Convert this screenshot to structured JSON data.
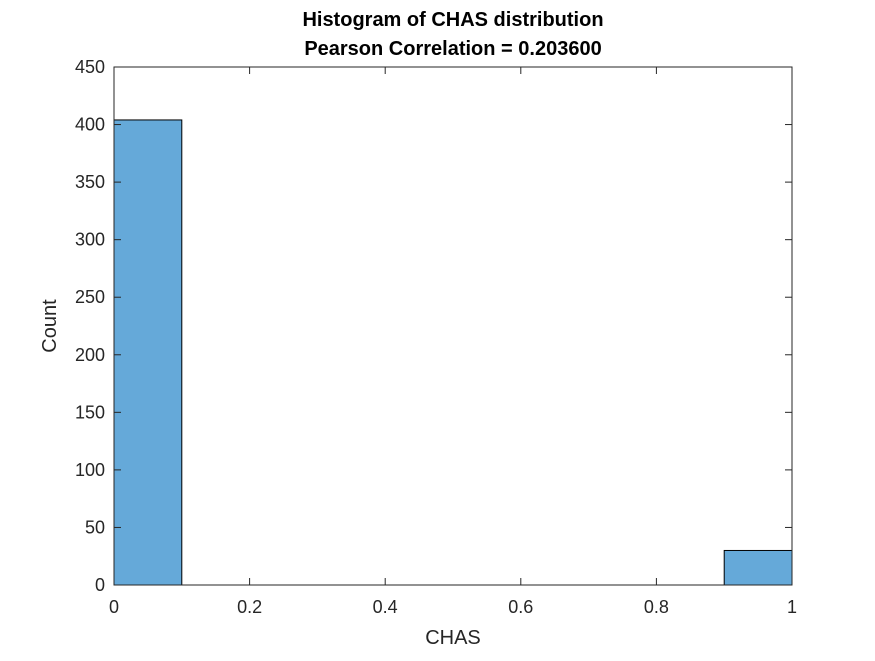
{
  "chart_data": {
    "type": "bar",
    "title": "Histogram of CHAS distribution",
    "subtitle": "Pearson Correlation = 0.203600",
    "xlabel": "CHAS",
    "ylabel": "Count",
    "xlim": [
      0,
      1
    ],
    "ylim": [
      0,
      450
    ],
    "xticks": [
      0,
      0.2,
      0.4,
      0.6,
      0.8,
      1
    ],
    "xtick_labels": [
      "0",
      "0.2",
      "0.4",
      "0.6",
      "0.8",
      "1"
    ],
    "yticks": [
      0,
      50,
      100,
      150,
      200,
      250,
      300,
      350,
      400,
      450
    ],
    "ytick_labels": [
      "0",
      "50",
      "100",
      "150",
      "200",
      "250",
      "300",
      "350",
      "400",
      "450"
    ],
    "grid": false,
    "bar_color": "#65A9D9",
    "bins": [
      {
        "start": 0.0,
        "end": 0.1,
        "value": 404
      },
      {
        "start": 0.1,
        "end": 0.2,
        "value": 0
      },
      {
        "start": 0.2,
        "end": 0.3,
        "value": 0
      },
      {
        "start": 0.3,
        "end": 0.4,
        "value": 0
      },
      {
        "start": 0.4,
        "end": 0.5,
        "value": 0
      },
      {
        "start": 0.5,
        "end": 0.6,
        "value": 0
      },
      {
        "start": 0.6,
        "end": 0.7,
        "value": 0
      },
      {
        "start": 0.7,
        "end": 0.8,
        "value": 0
      },
      {
        "start": 0.8,
        "end": 0.9,
        "value": 0
      },
      {
        "start": 0.9,
        "end": 1.0,
        "value": 30
      }
    ]
  }
}
